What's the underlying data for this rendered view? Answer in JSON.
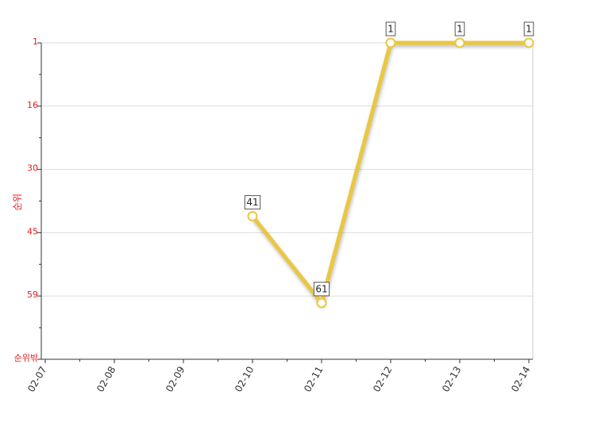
{
  "chart_data": {
    "type": "line",
    "y_axis_label": "순위",
    "inverted_y": true,
    "categories": [
      "02-07",
      "02-08",
      "02-09",
      "02-10",
      "02-11",
      "02-12",
      "02-13",
      "02-14"
    ],
    "series": [
      {
        "name": "순위",
        "color": "#eac73f",
        "values": [
          null,
          null,
          null,
          41,
          61,
          1,
          1,
          1
        ]
      }
    ],
    "ylim": [
      1,
      74
    ],
    "yticks": [
      1,
      {
        "value": 15.6,
        "label": "16"
      },
      {
        "value": 30.2,
        "label": "30"
      },
      {
        "value": 44.8,
        "label": "45"
      },
      {
        "value": 59.4,
        "label": "59"
      },
      {
        "value": 74,
        "label": "순위밖"
      }
    ],
    "grid": true
  }
}
